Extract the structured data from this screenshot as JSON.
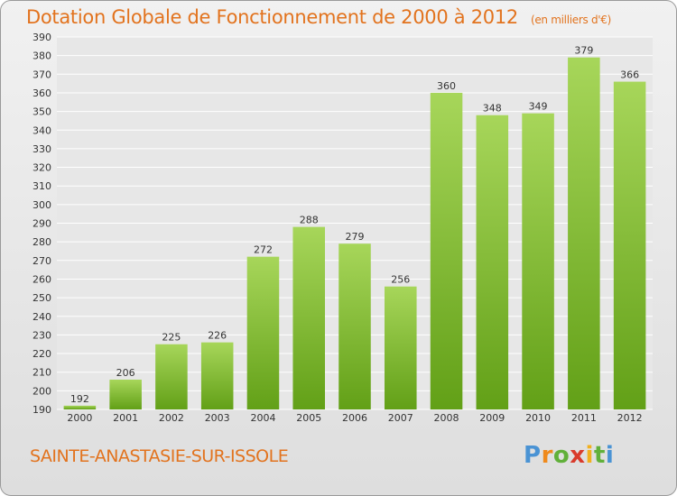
{
  "title": "Dotation Globale de Fonctionnement de 2000 à 2012",
  "unit_note": "(en milliers d'€)",
  "city": "SAINTE-ANASTASIE-SUR-ISSOLE",
  "logo": {
    "letters": [
      "P",
      "r",
      "o",
      "x",
      "i",
      "t",
      "i"
    ],
    "colors": [
      "#4a93d4",
      "#ef8a1c",
      "#61b03a",
      "#d93b2c",
      "#f2b01e",
      "#61b03a",
      "#4a93d4"
    ]
  },
  "colors": {
    "bar_top": "#a7d65a",
    "bar_bottom": "#62a017",
    "title": "#e2731e"
  },
  "chart_data": {
    "type": "bar",
    "categories": [
      "2000",
      "2001",
      "2002",
      "2003",
      "2004",
      "2005",
      "2006",
      "2007",
      "2008",
      "2009",
      "2010",
      "2011",
      "2012"
    ],
    "values": [
      192,
      206,
      225,
      226,
      272,
      288,
      279,
      256,
      360,
      348,
      349,
      379,
      366
    ],
    "ylim": [
      190,
      390
    ],
    "yticks": [
      190,
      200,
      210,
      220,
      230,
      240,
      250,
      260,
      270,
      280,
      290,
      300,
      310,
      320,
      330,
      340,
      350,
      360,
      370,
      380,
      390
    ],
    "grid": true
  }
}
